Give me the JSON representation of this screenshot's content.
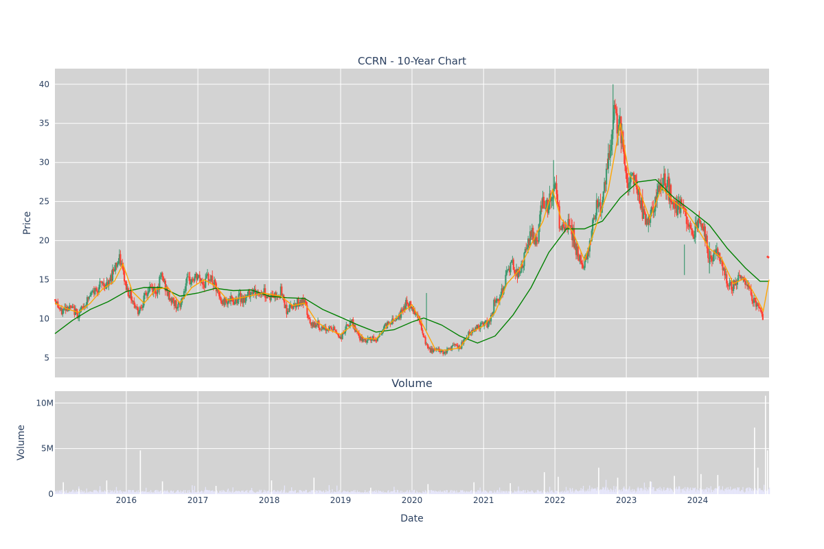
{
  "chart_data": {
    "type": "candlestick",
    "title": "CCRN - 10-Year Chart",
    "price_panel": {
      "ylabel": "Price",
      "ylim": [
        2.5,
        42
      ],
      "yticks": [
        5,
        10,
        15,
        20,
        25,
        30,
        35,
        40
      ],
      "grid": true,
      "increasing_color": "#3d9970",
      "decreasing_color": "#ff4136",
      "plot_bgcolor": "#d3d3d3"
    },
    "volume_panel": {
      "title": "Volume",
      "ylabel": "Volume",
      "ylim": [
        0,
        11300000
      ],
      "yticks": [
        {
          "value": 0,
          "label": "0"
        },
        {
          "value": 5000000,
          "label": "5M"
        },
        {
          "value": 10000000,
          "label": "10M"
        }
      ],
      "bar_color": "#e6e6fa"
    },
    "xaxis": {
      "label": "Date",
      "xlim": [
        "2015-01-01",
        "2024-12-31"
      ],
      "ticks": [
        {
          "date": "2016-01-01",
          "label": "2016"
        },
        {
          "date": "2017-01-01",
          "label": "2017"
        },
        {
          "date": "2018-01-01",
          "label": "2018"
        },
        {
          "date": "2019-01-01",
          "label": "2019"
        },
        {
          "date": "2020-01-01",
          "label": "2020"
        },
        {
          "date": "2021-01-01",
          "label": "2021"
        },
        {
          "date": "2022-01-01",
          "label": "2022"
        },
        {
          "date": "2023-01-01",
          "label": "2023"
        },
        {
          "date": "2024-01-01",
          "label": "2024"
        }
      ]
    },
    "price_series": [
      [
        "2015-01-01",
        12.5
      ],
      [
        "2015-02-01",
        10.8
      ],
      [
        "2015-03-01",
        11.6
      ],
      [
        "2015-04-01",
        11.2
      ],
      [
        "2015-05-01",
        10.5
      ],
      [
        "2015-06-01",
        11.8
      ],
      [
        "2015-07-01",
        13.0
      ],
      [
        "2015-08-01",
        13.8
      ],
      [
        "2015-09-01",
        14.5
      ],
      [
        "2015-10-01",
        14.2
      ],
      [
        "2015-11-01",
        16.8
      ],
      [
        "2015-12-01",
        17.5
      ],
      [
        "2016-01-01",
        14.0
      ],
      [
        "2016-02-01",
        12.5
      ],
      [
        "2016-03-01",
        11.0
      ],
      [
        "2016-04-01",
        12.5
      ],
      [
        "2016-05-01",
        14.0
      ],
      [
        "2016-06-01",
        13.5
      ],
      [
        "2016-07-01",
        15.5
      ],
      [
        "2016-08-01",
        13.0
      ],
      [
        "2016-09-01",
        12.0
      ],
      [
        "2016-10-01",
        11.5
      ],
      [
        "2016-11-01",
        14.5
      ],
      [
        "2016-12-01",
        15.0
      ],
      [
        "2017-01-01",
        15.3
      ],
      [
        "2017-02-01",
        14.5
      ],
      [
        "2017-03-01",
        15.5
      ],
      [
        "2017-04-01",
        14.0
      ],
      [
        "2017-05-01",
        12.0
      ],
      [
        "2017-06-01",
        12.5
      ],
      [
        "2017-07-01",
        12.2
      ],
      [
        "2017-08-01",
        12.8
      ],
      [
        "2017-09-01",
        12.5
      ],
      [
        "2017-10-01",
        13.8
      ],
      [
        "2017-11-01",
        13.2
      ],
      [
        "2017-12-01",
        13.5
      ],
      [
        "2018-01-01",
        12.8
      ],
      [
        "2018-02-01",
        13.0
      ],
      [
        "2018-03-01",
        13.5
      ],
      [
        "2018-04-01",
        11.0
      ],
      [
        "2018-05-01",
        11.8
      ],
      [
        "2018-06-01",
        12.2
      ],
      [
        "2018-07-01",
        12.0
      ],
      [
        "2018-08-01",
        9.0
      ],
      [
        "2018-09-01",
        9.5
      ],
      [
        "2018-10-01",
        8.5
      ],
      [
        "2018-11-01",
        8.8
      ],
      [
        "2018-12-01",
        8.6
      ],
      [
        "2019-01-01",
        7.5
      ],
      [
        "2019-02-01",
        9.0
      ],
      [
        "2019-03-01",
        9.5
      ],
      [
        "2019-04-01",
        7.8
      ],
      [
        "2019-05-01",
        7.0
      ],
      [
        "2019-06-01",
        7.5
      ],
      [
        "2019-07-01",
        7.2
      ],
      [
        "2019-08-01",
        8.5
      ],
      [
        "2019-09-01",
        9.5
      ],
      [
        "2019-10-01",
        10.0
      ],
      [
        "2019-11-01",
        10.5
      ],
      [
        "2019-12-01",
        12.0
      ],
      [
        "2020-01-01",
        11.5
      ],
      [
        "2020-02-01",
        10.5
      ],
      [
        "2020-03-01",
        7.5
      ],
      [
        "2020-04-01",
        5.8
      ],
      [
        "2020-05-01",
        6.2
      ],
      [
        "2020-06-01",
        5.8
      ],
      [
        "2020-07-01",
        6.0
      ],
      [
        "2020-08-01",
        6.5
      ],
      [
        "2020-09-01",
        6.2
      ],
      [
        "2020-10-01",
        7.5
      ],
      [
        "2020-11-01",
        8.5
      ],
      [
        "2020-12-01",
        9.0
      ],
      [
        "2021-01-01",
        9.2
      ],
      [
        "2021-02-01",
        9.5
      ],
      [
        "2021-03-01",
        12.5
      ],
      [
        "2021-04-01",
        13.0
      ],
      [
        "2021-05-01",
        16.0
      ],
      [
        "2021-06-01",
        17.0
      ],
      [
        "2021-07-01",
        15.5
      ],
      [
        "2021-08-01",
        18.0
      ],
      [
        "2021-09-01",
        21.0
      ],
      [
        "2021-10-01",
        20.0
      ],
      [
        "2021-11-01",
        25.5
      ],
      [
        "2021-12-01",
        24.5
      ],
      [
        "2022-01-01",
        27.0
      ],
      [
        "2022-02-01",
        21.0
      ],
      [
        "2022-03-01",
        22.0
      ],
      [
        "2022-04-01",
        21.0
      ],
      [
        "2022-05-01",
        17.5
      ],
      [
        "2022-06-01",
        17.0
      ],
      [
        "2022-07-01",
        20.0
      ],
      [
        "2022-08-01",
        25.0
      ],
      [
        "2022-09-01",
        24.5
      ],
      [
        "2022-10-01",
        30.0
      ],
      [
        "2022-11-01",
        36.0
      ],
      [
        "2022-12-01",
        34.5
      ],
      [
        "2023-01-01",
        27.5
      ],
      [
        "2023-02-01",
        28.5
      ],
      [
        "2023-03-01",
        26.5
      ],
      [
        "2023-04-01",
        23.0
      ],
      [
        "2023-05-01",
        22.5
      ],
      [
        "2023-06-01",
        25.0
      ],
      [
        "2023-07-01",
        27.5
      ],
      [
        "2023-08-01",
        27.0
      ],
      [
        "2023-09-01",
        24.0
      ],
      [
        "2023-10-01",
        24.5
      ],
      [
        "2023-11-01",
        23.0
      ],
      [
        "2023-12-01",
        20.5
      ],
      [
        "2024-01-01",
        22.5
      ],
      [
        "2024-02-01",
        21.5
      ],
      [
        "2024-03-01",
        17.5
      ],
      [
        "2024-04-01",
        18.5
      ],
      [
        "2024-05-01",
        17.5
      ],
      [
        "2024-06-01",
        14.5
      ],
      [
        "2024-07-01",
        14.2
      ],
      [
        "2024-08-01",
        15.5
      ],
      [
        "2024-09-01",
        15.0
      ],
      [
        "2024-10-01",
        13.0
      ],
      [
        "2024-11-01",
        11.5
      ],
      [
        "2024-12-01",
        10.2
      ],
      [
        "2024-12-20",
        18.0
      ]
    ],
    "ma_short": {
      "color": "#ffa500",
      "points": [
        [
          "2015-01-01",
          12.0
        ],
        [
          "2015-03-01",
          11.3
        ],
        [
          "2015-05-01",
          10.8
        ],
        [
          "2015-07-01",
          12.0
        ],
        [
          "2015-09-01",
          13.8
        ],
        [
          "2015-11-01",
          14.8
        ],
        [
          "2015-12-15",
          17.0
        ],
        [
          "2016-02-01",
          13.5
        ],
        [
          "2016-04-01",
          12.0
        ],
        [
          "2016-06-01",
          13.8
        ],
        [
          "2016-08-01",
          14.0
        ],
        [
          "2016-10-01",
          12.0
        ],
        [
          "2016-12-01",
          14.0
        ],
        [
          "2017-02-01",
          15.0
        ],
        [
          "2017-04-01",
          14.2
        ],
        [
          "2017-06-01",
          12.4
        ],
        [
          "2017-09-01",
          12.8
        ],
        [
          "2017-12-01",
          13.3
        ],
        [
          "2018-03-01",
          12.9
        ],
        [
          "2018-05-01",
          11.7
        ],
        [
          "2018-07-01",
          12.0
        ],
        [
          "2018-09-01",
          9.6
        ],
        [
          "2018-11-01",
          8.6
        ],
        [
          "2019-01-01",
          8.0
        ],
        [
          "2019-03-01",
          9.2
        ],
        [
          "2019-05-01",
          7.5
        ],
        [
          "2019-07-01",
          7.4
        ],
        [
          "2019-09-01",
          9.2
        ],
        [
          "2019-11-01",
          10.6
        ],
        [
          "2020-01-01",
          11.8
        ],
        [
          "2020-03-01",
          9.0
        ],
        [
          "2020-05-01",
          6.0
        ],
        [
          "2020-07-01",
          6.0
        ],
        [
          "2020-09-01",
          6.3
        ],
        [
          "2020-11-01",
          8.3
        ],
        [
          "2021-01-01",
          9.1
        ],
        [
          "2021-03-01",
          10.8
        ],
        [
          "2021-05-01",
          14.5
        ],
        [
          "2021-07-01",
          16.2
        ],
        [
          "2021-09-01",
          19.5
        ],
        [
          "2021-11-01",
          22.5
        ],
        [
          "2021-12-20",
          26.5
        ],
        [
          "2022-02-01",
          22.8
        ],
        [
          "2022-04-01",
          21.2
        ],
        [
          "2022-06-01",
          17.5
        ],
        [
          "2022-08-01",
          22.0
        ],
        [
          "2022-10-01",
          26.5
        ],
        [
          "2022-12-01",
          35.0
        ],
        [
          "2023-01-15",
          28.5
        ],
        [
          "2023-03-01",
          27.0
        ],
        [
          "2023-05-01",
          22.8
        ],
        [
          "2023-07-01",
          26.8
        ],
        [
          "2023-09-01",
          25.0
        ],
        [
          "2023-11-01",
          23.8
        ],
        [
          "2024-01-01",
          21.5
        ],
        [
          "2024-03-01",
          19.0
        ],
        [
          "2024-05-01",
          17.8
        ],
        [
          "2024-07-01",
          14.5
        ],
        [
          "2024-09-01",
          15.2
        ],
        [
          "2024-11-01",
          12.5
        ],
        [
          "2024-12-01",
          11.0
        ],
        [
          "2024-12-31",
          15.0
        ]
      ]
    },
    "ma_long": {
      "color": "#008000",
      "points": [
        [
          "2015-01-01",
          8.1
        ],
        [
          "2015-04-01",
          9.8
        ],
        [
          "2015-07-01",
          11.2
        ],
        [
          "2015-10-01",
          12.2
        ],
        [
          "2016-01-01",
          13.5
        ],
        [
          "2016-04-01",
          14.0
        ],
        [
          "2016-07-01",
          14.0
        ],
        [
          "2016-10-01",
          12.9
        ],
        [
          "2017-01-01",
          13.3
        ],
        [
          "2017-04-01",
          13.9
        ],
        [
          "2017-07-01",
          13.6
        ],
        [
          "2017-10-01",
          13.7
        ],
        [
          "2018-01-01",
          12.9
        ],
        [
          "2018-04-01",
          12.7
        ],
        [
          "2018-07-01",
          12.6
        ],
        [
          "2018-10-01",
          11.2
        ],
        [
          "2019-01-01",
          10.2
        ],
        [
          "2019-04-01",
          9.2
        ],
        [
          "2019-07-01",
          8.3
        ],
        [
          "2019-10-01",
          8.6
        ],
        [
          "2020-01-01",
          9.6
        ],
        [
          "2020-03-01",
          10.1
        ],
        [
          "2020-06-01",
          9.2
        ],
        [
          "2020-09-01",
          7.8
        ],
        [
          "2020-12-01",
          6.9
        ],
        [
          "2021-03-01",
          7.8
        ],
        [
          "2021-06-01",
          10.5
        ],
        [
          "2021-09-01",
          14.0
        ],
        [
          "2021-12-01",
          18.5
        ],
        [
          "2022-03-01",
          21.5
        ],
        [
          "2022-06-01",
          21.5
        ],
        [
          "2022-09-01",
          22.5
        ],
        [
          "2022-12-01",
          25.5
        ],
        [
          "2023-03-01",
          27.5
        ],
        [
          "2023-06-01",
          27.8
        ],
        [
          "2023-09-01",
          25.5
        ],
        [
          "2023-12-01",
          23.8
        ],
        [
          "2024-03-01",
          22.0
        ],
        [
          "2024-06-01",
          19.0
        ],
        [
          "2024-09-01",
          16.5
        ],
        [
          "2024-11-15",
          14.8
        ],
        [
          "2024-12-31",
          14.8
        ]
      ]
    },
    "volume_spikes": [
      [
        "2015-02-10",
        1300000
      ],
      [
        "2015-05-01",
        600000
      ],
      [
        "2015-09-20",
        1500000
      ],
      [
        "2016-03-10",
        4800000
      ],
      [
        "2016-07-01",
        1400000
      ],
      [
        "2017-04-01",
        900000
      ],
      [
        "2018-01-10",
        1500000
      ],
      [
        "2018-08-15",
        1800000
      ],
      [
        "2019-06-01",
        700000
      ],
      [
        "2020-03-20",
        1100000
      ],
      [
        "2020-11-10",
        1300000
      ],
      [
        "2021-05-15",
        1200000
      ],
      [
        "2021-11-05",
        2400000
      ],
      [
        "2022-01-15",
        1900000
      ],
      [
        "2022-08-10",
        2900000
      ],
      [
        "2022-11-15",
        1800000
      ],
      [
        "2023-05-01",
        1400000
      ],
      [
        "2023-09-01",
        2000000
      ],
      [
        "2024-01-15",
        2200000
      ],
      [
        "2024-04-10",
        2100000
      ],
      [
        "2024-10-15",
        7300000
      ],
      [
        "2024-11-01",
        2900000
      ],
      [
        "2024-12-10",
        10800000
      ],
      [
        "2024-12-20",
        4800000
      ]
    ]
  }
}
